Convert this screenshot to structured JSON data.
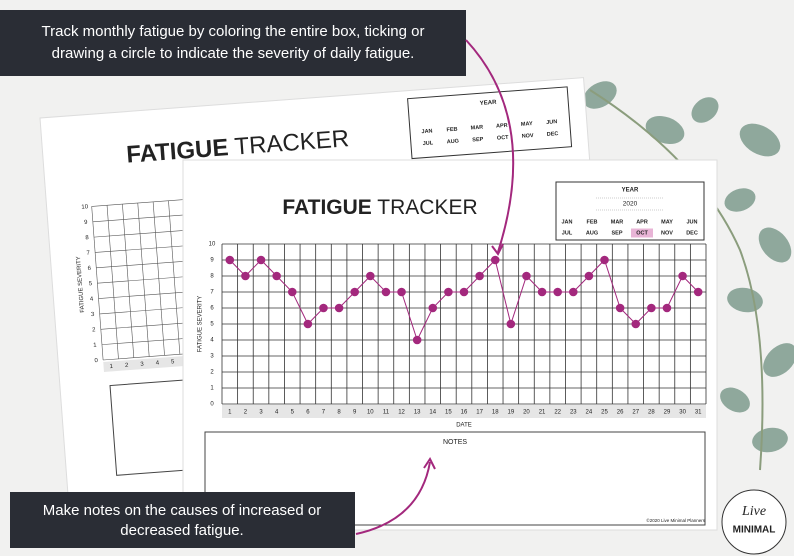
{
  "callouts": {
    "top": [
      "Track monthly fatigue by coloring the entire box, ticking or",
      "drawing a circle to indicate the severity of daily fatigue."
    ],
    "bottom": [
      "Make notes on the causes of increased or",
      "decreased fatigue."
    ]
  },
  "back_sheet": {
    "title_bold": "FATIGUE",
    "title_light": "TRACKER",
    "year_label": "YEAR",
    "months": [
      "JAN",
      "FEB",
      "MAR",
      "APR",
      "MAY",
      "JUN",
      "JUL",
      "AUG",
      "SEP",
      "OCT",
      "NOV",
      "DEC"
    ],
    "y_label": "FATIGUE SEVERITY",
    "yticks": [
      0,
      1,
      2,
      3,
      4,
      5,
      6,
      7,
      8,
      9,
      10
    ],
    "xticks": [
      1,
      2,
      3,
      4,
      5
    ]
  },
  "year_box": {
    "label": "YEAR",
    "year": "2020",
    "months": [
      "JAN",
      "FEB",
      "MAR",
      "APR",
      "MAY",
      "JUN",
      "JUL",
      "AUG",
      "SEP",
      "OCT",
      "NOV",
      "DEC"
    ],
    "selected": 9
  },
  "chart_data": {
    "type": "line",
    "title_bold": "FATIGUE",
    "title_light": "TRACKER",
    "x_label": "DATE",
    "y_label": "FATIGUE SEVERITY",
    "x": [
      1,
      2,
      3,
      4,
      5,
      6,
      7,
      8,
      9,
      10,
      11,
      12,
      13,
      14,
      15,
      16,
      17,
      18,
      19,
      20,
      21,
      22,
      23,
      24,
      25,
      26,
      27,
      28,
      29,
      30,
      31
    ],
    "values": [
      9,
      8,
      9,
      8,
      7,
      5,
      6,
      6,
      7,
      8,
      7,
      7,
      4,
      6,
      7,
      7,
      8,
      9,
      5,
      8,
      7,
      7,
      7,
      8,
      9,
      6,
      5,
      6,
      6,
      8,
      7
    ],
    "color": "#a3287d",
    "xlim": [
      0.5,
      31.5
    ],
    "xticks": [
      1,
      2,
      3,
      4,
      5,
      6,
      7,
      8,
      9,
      10,
      11,
      12,
      13,
      14,
      15,
      16,
      17,
      18,
      19,
      20,
      21,
      22,
      23,
      24,
      25,
      26,
      27,
      28,
      29,
      30,
      31
    ],
    "ylim": [
      0,
      10
    ],
    "yticks": [
      0,
      1,
      2,
      3,
      4,
      5,
      6,
      7,
      8,
      9,
      10
    ],
    "grid": true
  },
  "notes_label": "NOTES",
  "footer": "©2020 Live Minimal Planners",
  "logo": {
    "script": "Live",
    "word": "MINIMAL"
  }
}
